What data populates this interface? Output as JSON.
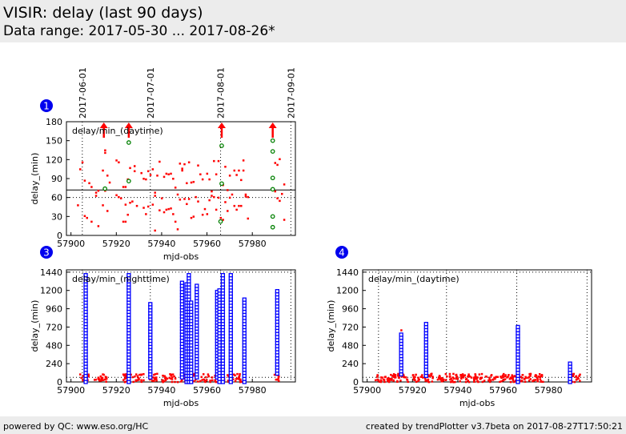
{
  "header": {
    "title": "VISIR: delay (last 90 days)",
    "subtitle": "Data range: 2017-05-30 ... 2017-08-26*"
  },
  "footer": {
    "left": "powered by QC: www.eso.org/HC",
    "right": "created by trendPlotter v3.7beta on 2017-08-27T17:50:21"
  },
  "colors": {
    "red": "#ff0000",
    "blue": "#0000ff",
    "green": "#008000",
    "badge": "#0000ee"
  },
  "chart_data": [
    {
      "id": "1",
      "type": "scatter",
      "title": "delay/min_(daytime)",
      "xlabel": "mjd-obs",
      "ylabel": "delay_(min)",
      "xlim": [
        57898,
        57999
      ],
      "ylim": [
        0,
        180
      ],
      "xticks": [
        57900,
        57920,
        57940,
        57960,
        57980
      ],
      "yticks": [
        0,
        30,
        60,
        90,
        120,
        150,
        180
      ],
      "date_ticks": [
        {
          "label": "2017-06-01",
          "mjd": 57905
        },
        {
          "label": "2017-07-01",
          "mjd": 57935
        },
        {
          "label": "2017-08-01",
          "mjd": 57966
        },
        {
          "label": "2017-09-01",
          "mjd": 57997
        }
      ],
      "ref_solid": 72,
      "ref_dotted": 60,
      "red": [
        [
          57903,
          48
        ],
        [
          57904,
          105
        ],
        [
          57905,
          116
        ],
        [
          57906,
          87
        ],
        [
          57906,
          31
        ],
        [
          57907,
          28
        ],
        [
          57908,
          83
        ],
        [
          57909,
          77
        ],
        [
          57909,
          22
        ],
        [
          57911,
          63
        ],
        [
          57911,
          68
        ],
        [
          57912,
          15
        ],
        [
          57912,
          71
        ],
        [
          57914,
          103
        ],
        [
          57914,
          48
        ],
        [
          57915,
          135
        ],
        [
          57915,
          131
        ],
        [
          57915,
          71
        ],
        [
          57916,
          95
        ],
        [
          57916,
          39
        ],
        [
          57917,
          84
        ],
        [
          57920,
          119
        ],
        [
          57920,
          64
        ],
        [
          57921,
          61
        ],
        [
          57921,
          116
        ],
        [
          57922,
          59
        ],
        [
          57923,
          22
        ],
        [
          57923,
          77
        ],
        [
          57924,
          77
        ],
        [
          57924,
          22
        ],
        [
          57924,
          49
        ],
        [
          57925,
          33
        ],
        [
          57925,
          89
        ],
        [
          57926,
          107
        ],
        [
          57926,
          52
        ],
        [
          57927,
          54
        ],
        [
          57928,
          110
        ],
        [
          57928,
          102
        ],
        [
          57929,
          47
        ],
        [
          57931,
          99
        ],
        [
          57932,
          90
        ],
        [
          57932,
          44
        ],
        [
          57933,
          89
        ],
        [
          57933,
          34
        ],
        [
          57934,
          46
        ],
        [
          57934,
          102
        ],
        [
          57935,
          96
        ],
        [
          57936,
          105
        ],
        [
          57936,
          49
        ],
        [
          57937,
          8
        ],
        [
          57937,
          68
        ],
        [
          57937,
          63
        ],
        [
          57938,
          95
        ],
        [
          57939,
          40
        ],
        [
          57939,
          117
        ],
        [
          57940,
          59
        ],
        [
          57941,
          37
        ],
        [
          57941,
          93
        ],
        [
          57942,
          98
        ],
        [
          57942,
          41
        ],
        [
          57943,
          97
        ],
        [
          57943,
          42
        ],
        [
          57944,
          98
        ],
        [
          57944,
          43
        ],
        [
          57945,
          34
        ],
        [
          57945,
          90
        ],
        [
          57946,
          22
        ],
        [
          57946,
          76
        ],
        [
          57947,
          65
        ],
        [
          57947,
          10
        ],
        [
          57948,
          57
        ],
        [
          57948,
          114
        ],
        [
          57949,
          106
        ],
        [
          57949,
          103
        ],
        [
          57950,
          113
        ],
        [
          57950,
          58
        ],
        [
          57951,
          50
        ],
        [
          57951,
          83
        ],
        [
          57952,
          116
        ],
        [
          57952,
          58
        ],
        [
          57953,
          28
        ],
        [
          57953,
          84
        ],
        [
          57954,
          30
        ],
        [
          57954,
          85
        ],
        [
          57955,
          61
        ],
        [
          57956,
          54
        ],
        [
          57956,
          111
        ],
        [
          57957,
          97
        ],
        [
          57958,
          89
        ],
        [
          57958,
          33
        ],
        [
          57959,
          42
        ],
        [
          57960,
          98
        ],
        [
          57960,
          34
        ],
        [
          57961,
          89
        ],
        [
          57961,
          56
        ],
        [
          57962,
          63
        ],
        [
          57962,
          70
        ],
        [
          57963,
          118
        ],
        [
          57963,
          61
        ],
        [
          57964,
          41
        ],
        [
          57964,
          97
        ],
        [
          57965,
          60
        ],
        [
          57965,
          118
        ],
        [
          57966,
          141
        ],
        [
          57966,
          28
        ],
        [
          57967,
          25
        ],
        [
          57967,
          80
        ],
        [
          57968,
          109
        ],
        [
          57968,
          53
        ],
        [
          57969,
          39
        ],
        [
          57969,
          72
        ],
        [
          57970,
          95
        ],
        [
          57970,
          60
        ],
        [
          57971,
          65
        ],
        [
          57972,
          103
        ],
        [
          57972,
          47
        ],
        [
          57973,
          41
        ],
        [
          57973,
          96
        ],
        [
          57974,
          103
        ],
        [
          57974,
          47
        ],
        [
          57975,
          88
        ],
        [
          57975,
          47
        ],
        [
          57976,
          103
        ],
        [
          57976,
          119
        ],
        [
          57977,
          62
        ],
        [
          57977,
          65
        ],
        [
          57978,
          27
        ],
        [
          57978,
          61
        ],
        [
          57990,
          70
        ],
        [
          57990,
          115
        ],
        [
          57991,
          112
        ],
        [
          57991,
          59
        ],
        [
          57992,
          55
        ],
        [
          57992,
          121
        ],
        [
          57993,
          66
        ],
        [
          57994,
          25
        ],
        [
          57994,
          81
        ]
      ],
      "green": [
        [
          57915,
          74
        ],
        [
          57925.5,
          147
        ],
        [
          57925.5,
          86
        ],
        [
          57966.5,
          142
        ],
        [
          57966.5,
          82
        ],
        [
          57966,
          22
        ],
        [
          57989,
          150
        ],
        [
          57989,
          133
        ],
        [
          57989,
          91
        ],
        [
          57989,
          73
        ],
        [
          57989,
          30
        ],
        [
          57989,
          13
        ]
      ],
      "offscale_arrows": [
        57914.5,
        57925.5,
        57966.5,
        57989
      ]
    },
    {
      "id": "3",
      "type": "scatter",
      "title": "delay/min_(nighttime)",
      "xlabel": "mjd-obs",
      "ylabel": "delay_(min)",
      "xlim": [
        57898,
        57999
      ],
      "ylim": [
        0,
        1470
      ],
      "xticks": [
        57900,
        57920,
        57940,
        57960,
        57980
      ],
      "yticks": [
        0,
        240,
        480,
        720,
        960,
        1200,
        1440
      ],
      "ref_dotted": [
        60,
        1440
      ],
      "blue_columns": [
        [
          57906.5,
          0,
          1420
        ],
        [
          57925.5,
          0,
          1400
        ],
        [
          57935,
          60,
          1050
        ],
        [
          57949,
          60,
          1320
        ],
        [
          57951,
          0,
          1300
        ],
        [
          57952,
          0,
          1400
        ],
        [
          57953,
          0,
          1050
        ],
        [
          57955.5,
          60,
          1270
        ],
        [
          57964.5,
          60,
          1200
        ],
        [
          57965.5,
          0,
          1200
        ],
        [
          57967,
          0,
          1400
        ],
        [
          57970.5,
          0,
          1400
        ],
        [
          57976.5,
          0,
          1080
        ],
        [
          57991,
          110,
          1200
        ]
      ],
      "red_range": [
        [
          57904,
          57908
        ],
        [
          57910,
          57916
        ],
        [
          57923,
          57932
        ],
        [
          57934,
          57938
        ],
        [
          57940,
          57946
        ],
        [
          57947,
          57956
        ],
        [
          57957,
          57968
        ],
        [
          57969,
          57976
        ],
        [
          57989,
          57992
        ]
      ]
    },
    {
      "id": "4",
      "type": "scatter",
      "title": "delay/min_(daytime)",
      "xlabel": "mjd-obs",
      "ylabel": "delay_(min)",
      "xlim": [
        57898,
        57999
      ],
      "ylim": [
        0,
        1470
      ],
      "xticks": [
        57900,
        57920,
        57940,
        57960,
        57980
      ],
      "yticks": [
        0,
        240,
        480,
        720,
        960,
        1200,
        1440
      ],
      "ref_dotted": [
        60,
        1440
      ],
      "date_lines": [
        57905,
        57935,
        57966,
        57997
      ],
      "blue_columns": [
        [
          57915,
          100,
          620
        ],
        [
          57926,
          80,
          760
        ],
        [
          57966.5,
          0,
          750
        ],
        [
          57989.5,
          0,
          270
        ]
      ],
      "red_range": [
        [
          57903,
          57918
        ],
        [
          57920,
          57929
        ],
        [
          57931,
          57946
        ],
        [
          57947,
          57966
        ],
        [
          57967,
          57978
        ],
        [
          57989,
          57994
        ]
      ],
      "red_extra": [
        [
          57915,
          680
        ]
      ]
    }
  ]
}
